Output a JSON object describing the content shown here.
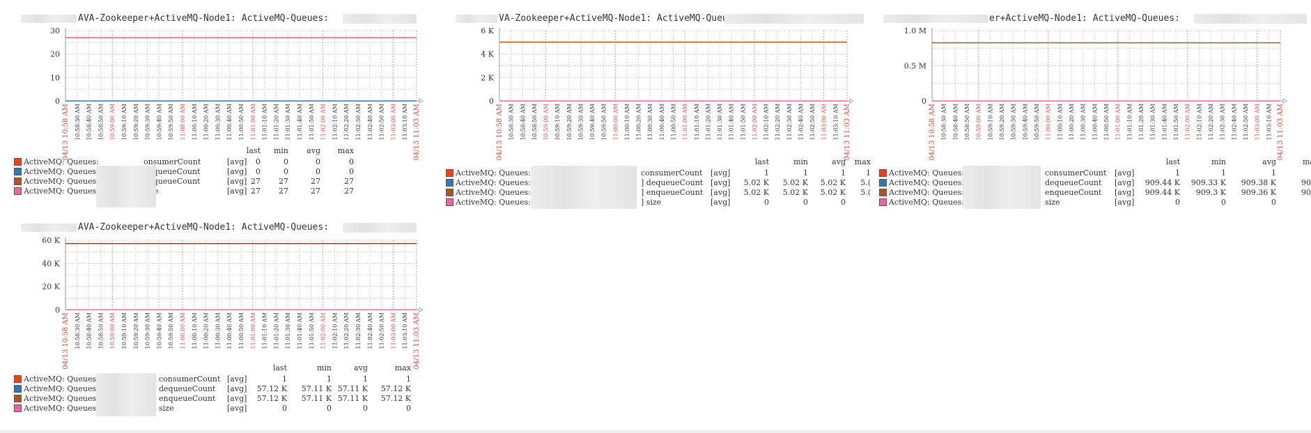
{
  "title_text": "AVA-Zookeeper+ActiveMQ-Node1: ActiveMQ-Queues:",
  "title_text_short": "VA-Zookeeper+ActiveMQ-Node1: ActiveMQ-Queues:",
  "title_text_3": "er+ActiveMQ-Node1: ActiveMQ-Queues:",
  "x_ticks": [
    "04/13 10:58 AM",
    "10:58:30 AM",
    "10:58:40 AM",
    "10:58:50 AM",
    "10:59:00 AM",
    "10:59:10 AM",
    "10:59:20 AM",
    "10:59:30 AM",
    "10:59:40 AM",
    "10:59:50 AM",
    "11:00:00 AM",
    "11:00:10 AM",
    "11:00:20 AM",
    "11:00:30 AM",
    "11:00:40 AM",
    "11:00:50 AM",
    "11:01:00 AM",
    "11:01:10 AM",
    "11:01:20 AM",
    "11:01:30 AM",
    "11:01:40 AM",
    "11:01:50 AM",
    "11:02:00 AM",
    "11:02:10 AM",
    "11:02:20 AM",
    "11:02:30 AM",
    "11:02:40 AM",
    "11:02:50 AM",
    "11:03:00 AM",
    "11:03:10 AM",
    "04/13 11:03 AM"
  ],
  "x_ticks_red": [
    "04/13 10:58 AM",
    "10:59:00 AM",
    "11:00:00 AM",
    "11:01:00 AM",
    "11:02:00 AM",
    "11:03:00 AM",
    "04/13 11:03 AM"
  ],
  "legend_headers": [
    "last",
    "min",
    "avg",
    "max"
  ],
  "series_colors": {
    "consumerCount": "#ee4411",
    "dequeueCount": "#3377bb",
    "enqueueCount": "#aa5522",
    "size": "#ee6699"
  },
  "graphs": [
    {
      "id": "graph-1",
      "y_ticks": [
        "30",
        "20",
        "10",
        "0"
      ],
      "legend": [
        {
          "prefix": "ActiveMQ: Queues:",
          "name": "onsumerCount",
          "func": "[avg]",
          "vals": [
            "0",
            "0",
            "0",
            "0"
          ],
          "color": "#ee4411"
        },
        {
          "prefix": "ActiveMQ: Queues:",
          "name": "dequeueCount",
          "func": "[avg]",
          "vals": [
            "0",
            "0",
            "0",
            "0"
          ],
          "color": "#3377bb"
        },
        {
          "prefix": "ActiveMQ: Queues:",
          "name": "enqueueCount",
          "func": "[avg]",
          "vals": [
            "27",
            "27",
            "27",
            "27"
          ],
          "color": "#aa5522"
        },
        {
          "prefix": "ActiveMQ: Queues:",
          "name": "size",
          "func": "[avg]",
          "vals": [
            "27",
            "27",
            "27",
            "27"
          ],
          "color": "#ee6699"
        }
      ]
    },
    {
      "id": "graph-2",
      "y_ticks": [
        "6 K",
        "4 K",
        "2 K",
        "0"
      ],
      "legend": [
        {
          "prefix": "ActiveMQ: Queues:",
          "name": "consumerCount",
          "func": "[avg]",
          "vals": [
            "1",
            "1",
            "1",
            "1"
          ],
          "color": "#ee4411"
        },
        {
          "prefix": "ActiveMQ: Queues:",
          "name": "] dequeueCount",
          "func": "[avg]",
          "vals": [
            "5.02 K",
            "5.02 K",
            "5.02 K",
            "5.("
          ],
          "color": "#3377bb"
        },
        {
          "prefix": "ActiveMQ: Queues:",
          "name": "] enqueueCount",
          "func": "[avg]",
          "vals": [
            "5.02 K",
            "5.02 K",
            "5.02 K",
            "5.("
          ],
          "color": "#aa5522"
        },
        {
          "prefix": "ActiveMQ: Queues:",
          "name": "] size",
          "func": "[avg]",
          "vals": [
            "0",
            "0",
            "0",
            ""
          ],
          "color": "#ee6699"
        }
      ]
    },
    {
      "id": "graph-3",
      "y_ticks": [
        "1.0 M",
        "0.5 M",
        "0"
      ],
      "legend": [
        {
          "prefix": "ActiveMQ: Queues:",
          "name": "consumerCount",
          "func": "[avg]",
          "vals": [
            "1",
            "1",
            "1",
            ""
          ],
          "color": "#ee4411"
        },
        {
          "prefix": "ActiveMQ: Queues:[",
          "name": "dequeueCount",
          "func": "[avg]",
          "vals": [
            "909.44 K",
            "909.33 K",
            "909.38 K",
            "909."
          ],
          "color": "#3377bb"
        },
        {
          "prefix": "ActiveMQ: Queues:[",
          "name": "enqueueCount",
          "func": "[avg]",
          "vals": [
            "909.44 K",
            "909.3 K",
            "909.36 K",
            "909."
          ],
          "color": "#aa5522"
        },
        {
          "prefix": "ActiveMQ: Queues:[",
          "name": "size",
          "func": "[avg]",
          "vals": [
            "0",
            "0",
            "0",
            ""
          ],
          "color": "#ee6699"
        }
      ]
    },
    {
      "id": "graph-4",
      "y_ticks": [
        "60 K",
        "40 K",
        "20 K",
        "0"
      ],
      "legend": [
        {
          "prefix": "ActiveMQ: Queues:",
          "name": "consumerCount",
          "func": "[avg]",
          "vals": [
            "1",
            "1",
            "1",
            "1"
          ],
          "color": "#ee4411"
        },
        {
          "prefix": "ActiveMQ: Queues:",
          "name": "dequeueCount",
          "func": "[avg]",
          "vals": [
            "57.12 K",
            "57.11 K",
            "57.11 K",
            "57.12 K"
          ],
          "color": "#3377bb"
        },
        {
          "prefix": "ActiveMQ: Queues:",
          "name": "enqueueCount",
          "func": "[avg]",
          "vals": [
            "57.12 K",
            "57.11 K",
            "57.11 K",
            "57.12 K"
          ],
          "color": "#aa5522"
        },
        {
          "prefix": "ActiveMQ: Queues:",
          "name": "size",
          "func": "[avg]",
          "vals": [
            "0",
            "0",
            "0",
            "0"
          ],
          "color": "#ee6699"
        }
      ]
    }
  ]
}
